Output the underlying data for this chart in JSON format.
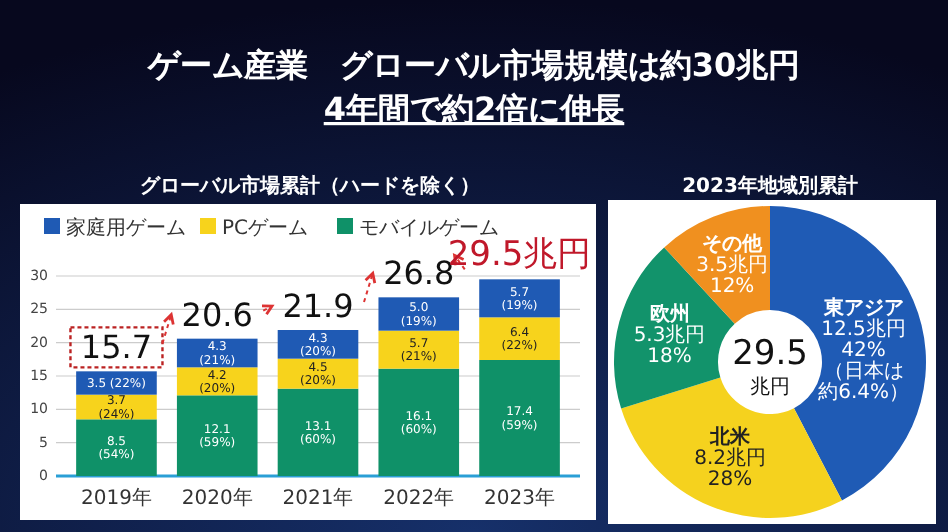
{
  "chart_data": [
    {
      "type": "other",
      "title": "ゲーム産業　グローバル市場規模は約30兆円",
      "subtitle": "4年間で約2倍に伸長"
    },
    {
      "type": "bar",
      "title": "グローバル市場累計（ハードを除く）",
      "categories": [
        "2019年",
        "2020年",
        "2021年",
        "2022年",
        "2023年"
      ],
      "stacked": true,
      "ylim": [
        0,
        30
      ],
      "yticks": [
        0,
        5,
        10,
        15,
        20,
        25,
        30
      ],
      "grid": "y",
      "legend": "top left",
      "series": [
        {
          "name": "モバイルゲーム",
          "color": "#0f9168",
          "values": [
            8.5,
            12.1,
            13.1,
            16.1,
            17.4
          ],
          "value_labels": [
            "8.5\n(54%)",
            "12.1\n(59%)",
            "13.1\n(60%)",
            "16.1\n(60%)",
            "17.4\n(59%)"
          ]
        },
        {
          "name": "PCゲーム",
          "color": "#f7d31c",
          "values": [
            3.7,
            4.2,
            4.5,
            5.7,
            6.4
          ],
          "value_labels": [
            "3.7\n(24%)",
            "4.2\n(20%)",
            "4.5\n(20%)",
            "5.7\n(21%)",
            "6.4\n(22%)"
          ]
        },
        {
          "name": "家庭用ゲーム",
          "color": "#1f5ab4",
          "values": [
            3.5,
            4.3,
            4.3,
            5.0,
            5.7
          ],
          "value_labels": [
            "3.5 (22%)",
            "4.3\n(21%)",
            "4.3\n(20%)",
            "5.0\n(19%)",
            "5.7\n(19%)"
          ]
        }
      ],
      "totals": [
        "15.7",
        "20.6",
        "21.9",
        "26.8",
        "29.5兆円"
      ]
    },
    {
      "type": "donut",
      "title": "2023年地域別累計",
      "categories": [
        "東アジア",
        "北米",
        "欧州",
        "その他"
      ],
      "values": [
        12.5,
        8.2,
        5.3,
        3.5
      ],
      "colors": [
        "#1f5bb5",
        "#f5d21e",
        "#12936b",
        "#f0901f"
      ],
      "value_labels": [
        "12.5兆円\n42%",
        "8.2兆円\n28%",
        "5.3兆円\n18%",
        "3.5兆円\n12%"
      ],
      "annotations": [
        "29.5",
        "兆円",
        "（日本は約6.4%）"
      ]
    }
  ]
}
